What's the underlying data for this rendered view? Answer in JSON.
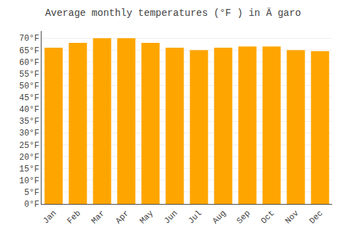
{
  "chart_data": {
    "type": "bar",
    "title": "Average monthly temperatures (°F ) in Ä garo",
    "categories": [
      "Jan",
      "Feb",
      "Mar",
      "Apr",
      "May",
      "Jun",
      "Jul",
      "Aug",
      "Sep",
      "Oct",
      "Nov",
      "Dec"
    ],
    "values": [
      66,
      68,
      70,
      70,
      68,
      66,
      65,
      66,
      66.5,
      66.5,
      65,
      64.5
    ],
    "color": "#FFA500",
    "ylim": [
      0,
      73
    ],
    "yticks": [
      {
        "value": 0,
        "label": "0°F"
      },
      {
        "value": 5,
        "label": "5°F"
      },
      {
        "value": 10,
        "label": "10°F"
      },
      {
        "value": 15,
        "label": "15°F"
      },
      {
        "value": 20,
        "label": "20°F"
      },
      {
        "value": 25,
        "label": "25°F"
      },
      {
        "value": 30,
        "label": "30°F"
      },
      {
        "value": 35,
        "label": "35°F"
      },
      {
        "value": 40,
        "label": "40°F"
      },
      {
        "value": 45,
        "label": "45°F"
      },
      {
        "value": 50,
        "label": "50°F"
      },
      {
        "value": 55,
        "label": "55°F"
      },
      {
        "value": 60,
        "label": "60°F"
      },
      {
        "value": 65,
        "label": "65°F"
      },
      {
        "value": 70,
        "label": "70°F"
      }
    ],
    "grid": true
  }
}
